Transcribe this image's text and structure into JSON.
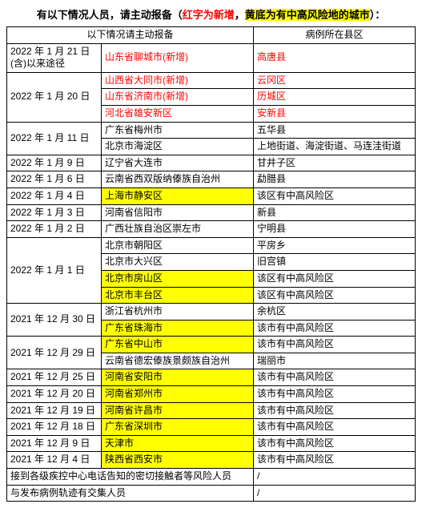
{
  "title": {
    "prefix": "有以下情况人员，请主动报备（",
    "red_part": "红字为新增",
    "mid": "，",
    "yellow_part": "黄底为有中高风险地的城市",
    "suffix": "）："
  },
  "headers": {
    "col1_a": "以下情况请主动报备",
    "col1_b": "",
    "col2": "病例所在县区"
  },
  "rows": [
    {
      "date": "2022 年 1 月 21 日(含)以来途径",
      "city": "山东省聊城市(新增)",
      "city_red": true,
      "city_hl": false,
      "district": "高唐县",
      "district_red": true,
      "district_hl": false
    },
    {
      "date": "2022 年 1 月 20 日",
      "rowspan": 3,
      "city": "山西省大同市(新增)",
      "city_red": true,
      "city_hl": false,
      "district": "云冈区",
      "district_red": true,
      "district_hl": false
    },
    {
      "city": "山东省济南市(新增)",
      "city_red": true,
      "city_hl": false,
      "district": "历城区",
      "district_red": true,
      "district_hl": false
    },
    {
      "city": "河北省雄安新区",
      "city_red": true,
      "city_hl": false,
      "district": "安新县",
      "district_red": true,
      "district_hl": false
    },
    {
      "date": "2022 年 1 月 11 日",
      "rowspan": 2,
      "city": "广东省梅州市",
      "city_red": false,
      "city_hl": false,
      "district": "五华县",
      "district_red": false,
      "district_hl": false
    },
    {
      "city": "北京市海淀区",
      "city_red": false,
      "city_hl": false,
      "district": "上地街道、海淀街道、马连洼街道",
      "district_red": false,
      "district_hl": false
    },
    {
      "date": "2022 年 1 月 9 日",
      "city": "辽宁省大连市",
      "city_red": false,
      "city_hl": false,
      "district": "甘井子区",
      "district_red": false,
      "district_hl": false
    },
    {
      "date": "2022 年 1 月 6 日",
      "city": "云南省西双版纳傣族自治州",
      "city_red": false,
      "city_hl": false,
      "district": "勐腊县",
      "district_red": false,
      "district_hl": false
    },
    {
      "date": "2022 年 1 月 4 日",
      "city": "上海市静安区",
      "city_red": false,
      "city_hl": true,
      "district": "该区有中高风险区",
      "district_red": false,
      "district_hl": false
    },
    {
      "date": "2022 年 1 月 3 日",
      "city": "河南省信阳市",
      "city_red": false,
      "city_hl": false,
      "district": "新县",
      "district_red": false,
      "district_hl": false
    },
    {
      "date": "2022 年 1 月 2 日",
      "city": "广西壮族自治区崇左市",
      "city_red": false,
      "city_hl": false,
      "district": "宁明县",
      "district_red": false,
      "district_hl": false
    },
    {
      "date": "2022 年 1 月 1 日",
      "rowspan": 4,
      "city": "北京市朝阳区",
      "city_red": false,
      "city_hl": false,
      "district": "平房乡",
      "district_red": false,
      "district_hl": false
    },
    {
      "city": "北京市大兴区",
      "city_red": false,
      "city_hl": false,
      "district": "旧宫镇",
      "district_red": false,
      "district_hl": false
    },
    {
      "city": "北京市房山区",
      "city_red": false,
      "city_hl": true,
      "district": "该区有中高风险区",
      "district_red": false,
      "district_hl": false
    },
    {
      "city": "北京市丰台区",
      "city_red": false,
      "city_hl": true,
      "district": "该区有中高风险区",
      "district_red": false,
      "district_hl": false
    },
    {
      "date": "2021 年 12 月 30 日",
      "rowspan": 2,
      "city": "浙江省杭州市",
      "city_red": false,
      "city_hl": false,
      "district": "余杭区",
      "district_red": false,
      "district_hl": false
    },
    {
      "city": "广东省珠海市",
      "city_red": false,
      "city_hl": true,
      "district": "该市有中高风险区",
      "district_red": false,
      "district_hl": false
    },
    {
      "date": "2021 年 12 月 29 日",
      "rowspan": 2,
      "city": "广东省中山市",
      "city_red": false,
      "city_hl": true,
      "district": "该市有中高风险区",
      "district_red": false,
      "district_hl": false
    },
    {
      "city": "云南省德宏傣族景颇族自治州",
      "city_red": false,
      "city_hl": false,
      "district": "瑞丽市",
      "district_red": false,
      "district_hl": false
    },
    {
      "date": "2021 年 12 月 25 日",
      "city": "河南省安阳市",
      "city_red": false,
      "city_hl": true,
      "district": "该市有中高风险区",
      "district_red": false,
      "district_hl": false
    },
    {
      "date": "2021 年 12 月 20 日",
      "city": "河南省郑州市",
      "city_red": false,
      "city_hl": true,
      "district": "该市有中高风险区",
      "district_red": false,
      "district_hl": false
    },
    {
      "date": "2021 年 12 月 19 日",
      "city": "河南省许昌市",
      "city_red": false,
      "city_hl": true,
      "district": "该市有中高风险区",
      "district_red": false,
      "district_hl": false
    },
    {
      "date": "2021 年 12 月 18 日",
      "city": "广东省深圳市",
      "city_red": false,
      "city_hl": true,
      "district": "该市有中高风险区",
      "district_red": false,
      "district_hl": false
    },
    {
      "date": "2021 年 12 月 9 日",
      "city": "天津市",
      "city_red": false,
      "city_hl": true,
      "district": "该市有中高风险区",
      "district_red": false,
      "district_hl": false
    },
    {
      "date": "2021 年 12 月 4 日",
      "city": "陕西省西安市",
      "city_red": false,
      "city_hl": true,
      "district": "该市有中高风险区",
      "district_red": false,
      "district_hl": false
    }
  ],
  "footer": [
    {
      "label": "接到各级疾控中心电话告知的密切接触者等风险人员",
      "value": "/"
    },
    {
      "label": "与发布病例轨迹有交集人员",
      "value": "/"
    }
  ]
}
